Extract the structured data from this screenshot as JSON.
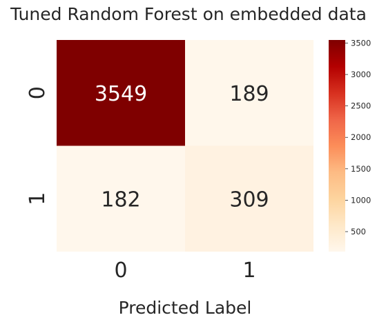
{
  "chart_data": {
    "type": "heatmap",
    "title": "Tuned Random Forest on embedded data",
    "xlabel": "Predicted Label",
    "ylabel": "",
    "x_categories": [
      "0",
      "1"
    ],
    "y_categories": [
      "0",
      "1"
    ],
    "values": [
      [
        3549,
        189
      ],
      [
        182,
        309
      ]
    ],
    "colormap": "OrRd",
    "colorbar": {
      "min": 182,
      "max": 3549,
      "ticks": [
        500,
        1000,
        1500,
        2000,
        2500,
        3000,
        3500
      ]
    }
  }
}
